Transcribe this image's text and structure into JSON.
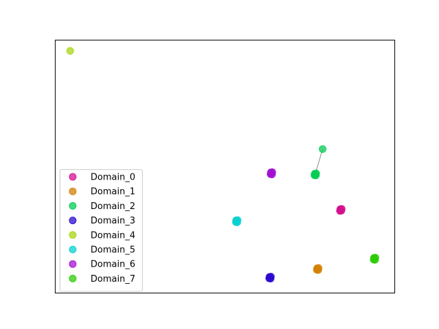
{
  "chart_data": {
    "type": "scatter",
    "title": "",
    "xlabel": "",
    "ylabel": "",
    "xlim": [
      0,
      100
    ],
    "ylim": [
      0,
      100
    ],
    "axis_ticks": "none",
    "grid": false,
    "legend_position": "lower-left",
    "series": [
      {
        "name": "Domain_0",
        "color": "#d4108f",
        "points": [
          [
            84.0,
            32.9
          ],
          [
            84.3,
            33.3
          ],
          [
            83.8,
            32.5
          ],
          [
            84.2,
            32.6
          ],
          [
            83.9,
            33.2
          ]
        ]
      },
      {
        "name": "Domain_1",
        "color": "#d28105",
        "points": [
          [
            77.2,
            9.6
          ],
          [
            77.5,
            10.0
          ],
          [
            77.0,
            9.3
          ],
          [
            77.4,
            9.2
          ],
          [
            77.1,
            9.9
          ]
        ]
      },
      {
        "name": "Domain_2",
        "color": "#06cc54",
        "points": [
          [
            76.5,
            46.9
          ],
          [
            76.8,
            47.3
          ],
          [
            76.3,
            46.6
          ],
          [
            76.7,
            46.5
          ],
          [
            76.4,
            47.2
          ],
          [
            78.7,
            56.9
          ]
        ]
      },
      {
        "name": "Domain_3",
        "color": "#2e0ad0",
        "points": [
          [
            63.2,
            6.2
          ],
          [
            63.5,
            6.6
          ],
          [
            63.0,
            5.9
          ],
          [
            63.4,
            5.8
          ],
          [
            63.1,
            6.5
          ]
        ]
      },
      {
        "name": "Domain_4",
        "color": "#aad614",
        "points": [
          [
            4.5,
            95.6
          ]
        ]
      },
      {
        "name": "Domain_5",
        "color": "#0ad0d0",
        "points": [
          [
            53.4,
            28.5
          ],
          [
            53.7,
            28.9
          ],
          [
            53.2,
            28.1
          ],
          [
            53.6,
            28.0
          ],
          [
            53.3,
            28.8
          ]
        ]
      },
      {
        "name": "Domain_6",
        "color": "#a410d2",
        "points": [
          [
            63.6,
            47.4
          ],
          [
            63.9,
            47.8
          ],
          [
            63.4,
            47.0
          ],
          [
            63.8,
            46.9
          ],
          [
            63.5,
            47.7
          ]
        ]
      },
      {
        "name": "Domain_7",
        "color": "#2ecc06",
        "points": [
          [
            93.9,
            13.7
          ],
          [
            94.2,
            14.1
          ],
          [
            93.7,
            13.3
          ],
          [
            94.1,
            13.2
          ],
          [
            93.8,
            14.0
          ]
        ]
      }
    ],
    "connections": [
      {
        "from": [
          76.5,
          46.9
        ],
        "to": [
          78.7,
          56.9
        ],
        "color": "#888888"
      }
    ]
  }
}
